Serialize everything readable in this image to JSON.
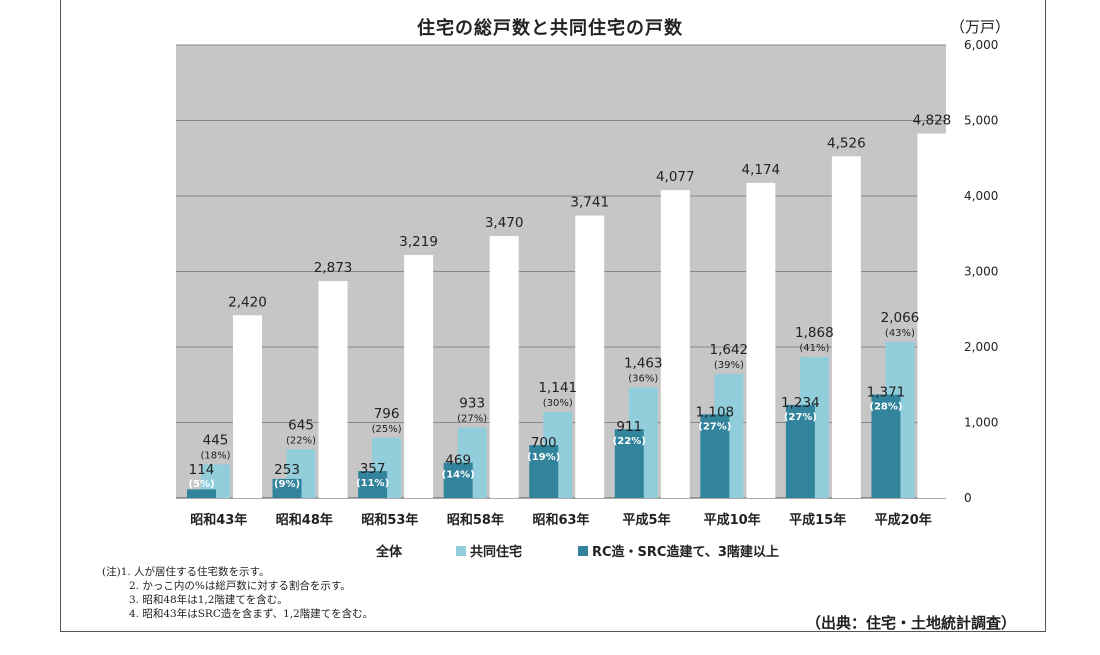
{
  "title": "住宅の総戸数と共同住宅の戸数",
  "unit": "（万戸）",
  "legend": {
    "total": "全体",
    "apartment": "共同住宅",
    "rc": "RC造・SRC造建て、3階建以上"
  },
  "notes": [
    "(注)1. 人が居住する住宅数を示す。",
    "2. かっこ内の%は総戸数に対する割合を示す。",
    "3. 昭和48年は1,2階建てを含む。",
    "4. 昭和43年はSRC造を含まず、1,2階建てを含む。"
  ],
  "source": "（出典：住宅・土地統計調査）",
  "colors": {
    "plot_bg": "#c6c6c6",
    "total": "#ffffff",
    "apartment": "#92cddc",
    "rc": "#31849b",
    "grid": "#888888"
  },
  "chart_data": {
    "type": "bar",
    "categories": [
      "昭和43年",
      "昭和48年",
      "昭和53年",
      "昭和58年",
      "昭和63年",
      "平成5年",
      "平成10年",
      "平成15年",
      "平成20年"
    ],
    "ylim": [
      0,
      6000
    ],
    "yticks": [
      "0",
      "1,000",
      "2,000",
      "3,000",
      "4,000",
      "5,000",
      "6,000"
    ],
    "ytick_values": [
      0,
      1000,
      2000,
      3000,
      4000,
      5000,
      6000
    ],
    "grid": true,
    "series": [
      {
        "name": "RC造・SRC造建て、3階建以上",
        "values": [
          114,
          253,
          357,
          469,
          700,
          911,
          1108,
          1234,
          1371
        ],
        "labels": [
          "114",
          "253",
          "357",
          "469",
          "700",
          "911",
          "1,108",
          "1,234",
          "1,371"
        ],
        "pct": [
          "(5%)",
          "(9%)",
          "(11%)",
          "(14%)",
          "(19%)",
          "(22%)",
          "(27%)",
          "(27%)",
          "(28%)"
        ]
      },
      {
        "name": "共同住宅",
        "values": [
          445,
          645,
          796,
          933,
          1141,
          1463,
          1642,
          1868,
          2066
        ],
        "labels": [
          "445",
          "645",
          "796",
          "933",
          "1,141",
          "1,463",
          "1,642",
          "1,868",
          "2,066"
        ],
        "pct": [
          "(18%)",
          "(22%)",
          "(25%)",
          "(27%)",
          "(30%)",
          "(36%)",
          "(39%)",
          "(41%)",
          "(43%)"
        ]
      },
      {
        "name": "全体",
        "values": [
          2420,
          2873,
          3219,
          3470,
          3741,
          4077,
          4174,
          4526,
          4828
        ],
        "labels": [
          "2,420",
          "2,873",
          "3,219",
          "3,470",
          "3,741",
          "4,077",
          "4,174",
          "4,526",
          "4,828"
        ]
      }
    ]
  }
}
